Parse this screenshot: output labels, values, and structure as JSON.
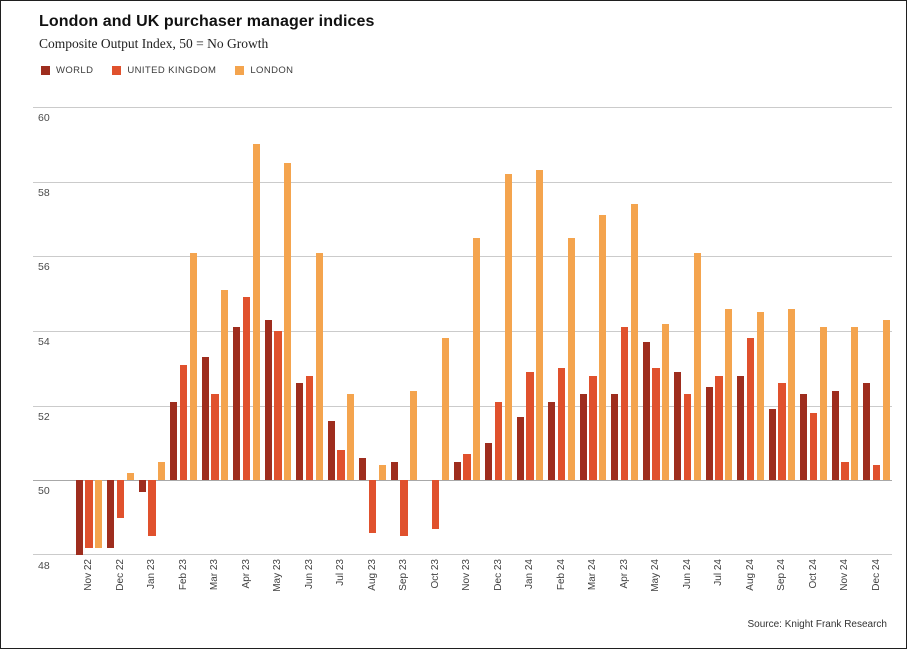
{
  "header": {
    "title": "London and UK purchaser manager indices",
    "subtitle": "Composite Output Index, 50 = No Growth"
  },
  "footer": {
    "source": "Source: Knight Frank Research"
  },
  "colors": {
    "world": "#9E2D1E",
    "united_kingdom": "#E0512D",
    "london": "#F4A44E",
    "grid": "#CBCBCB",
    "baseline_grid": "#A8A8A8",
    "frame_border": "#1F1F1F",
    "title_text": "#111111",
    "axis_text": "#4A4A4A",
    "legend_text": "#3C3C3C"
  },
  "chart_data": {
    "type": "bar",
    "title": "London and UK purchaser manager indices",
    "subtitle": "Composite Output Index, 50 = No Growth",
    "xlabel": "",
    "ylabel": "",
    "baseline": 50,
    "ylim": [
      48,
      60
    ],
    "yticks": [
      60,
      58,
      56,
      54,
      52,
      50,
      48
    ],
    "grid": true,
    "legend_position": "top-left",
    "categories": [
      "Nov 22",
      "Dec 22",
      "Jan 23",
      "Feb 23",
      "Mar 23",
      "Apr 23",
      "May 23",
      "Jun 23",
      "Jul 23",
      "Aug 23",
      "Sep 23",
      "Oct 23",
      "Nov 23",
      "Dec 23",
      "Jan 24",
      "Feb 24",
      "Mar 24",
      "Apr 23",
      "May 24",
      "Jun 24",
      "Jul 24",
      "Aug 24",
      "Sep 24",
      "Oct 24",
      "Nov 24",
      "Dec 24"
    ],
    "series": [
      {
        "name": "WORLD",
        "color": "#9E2D1E",
        "values": [
          48.0,
          48.2,
          49.7,
          52.1,
          53.3,
          54.1,
          54.3,
          52.6,
          51.6,
          50.6,
          50.5,
          50.0,
          50.5,
          51.0,
          51.7,
          52.1,
          52.3,
          52.3,
          53.7,
          52.9,
          52.5,
          52.8,
          51.9,
          52.3,
          52.4,
          52.6
        ]
      },
      {
        "name": "UNITED KINGDOM",
        "color": "#E0512D",
        "values": [
          48.2,
          49.0,
          48.5,
          53.1,
          52.3,
          54.9,
          54.0,
          52.8,
          50.8,
          48.6,
          48.5,
          48.7,
          50.7,
          52.1,
          52.9,
          53.0,
          52.8,
          54.1,
          53.0,
          52.3,
          52.8,
          53.8,
          52.6,
          51.8,
          50.5,
          50.4
        ]
      },
      {
        "name": "LONDON",
        "color": "#F4A44E",
        "values": [
          48.2,
          50.2,
          50.5,
          56.1,
          55.1,
          59.0,
          58.5,
          56.1,
          52.3,
          50.4,
          52.4,
          53.8,
          56.5,
          58.2,
          58.3,
          56.5,
          57.1,
          57.4,
          54.2,
          56.1,
          54.6,
          54.5,
          54.6,
          54.1,
          54.1,
          54.3
        ]
      }
    ]
  }
}
